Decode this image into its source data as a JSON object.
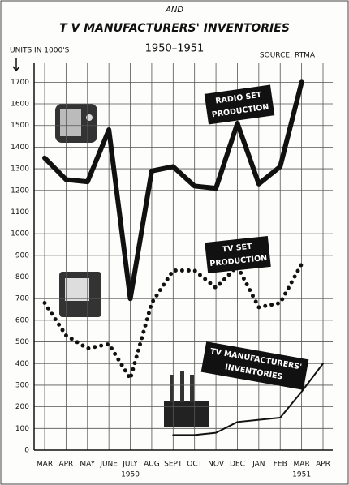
{
  "chart_data": {
    "type": "line",
    "supertitle": "AND",
    "title": "T V MANUFACTURERS' INVENTORIES",
    "subtitle": "1950–1951",
    "y_axis_label": "UNITS IN 1000'S",
    "source": "SOURCE: RTMA",
    "categories": [
      "MAR",
      "APR",
      "MAY",
      "JUNE",
      "JULY",
      "AUG",
      "SEPT",
      "OCT",
      "NOV",
      "DEC",
      "JAN",
      "FEB",
      "MAR",
      "APR"
    ],
    "year_labels": [
      "1950",
      "1951"
    ],
    "series": [
      {
        "name": "RADIO SET PRODUCTION",
        "label_lines": [
          "RADIO SET",
          "PRODUCTION"
        ],
        "color": "#111111",
        "style": "solid",
        "values": [
          1350,
          1250,
          1240,
          1480,
          700,
          1290,
          1310,
          1220,
          1210,
          1510,
          1230,
          1310,
          1700,
          null
        ]
      },
      {
        "name": "TV SET PRODUCTION",
        "label_lines": [
          "TV SET",
          "PRODUCTION"
        ],
        "color": "#111111",
        "style": "dotted",
        "values": [
          680,
          530,
          470,
          490,
          330,
          680,
          830,
          830,
          750,
          850,
          660,
          680,
          860,
          null
        ]
      },
      {
        "name": "TV MANUFACTURERS' INVENTORIES",
        "label_lines": [
          "TV MANUFACTURERS'",
          "INVENTORIES"
        ],
        "color": "#111111",
        "style": "thin",
        "values": [
          null,
          null,
          null,
          null,
          null,
          null,
          70,
          70,
          80,
          130,
          140,
          150,
          270,
          400
        ]
      }
    ],
    "ylim": [
      0,
      1750
    ],
    "yticks": [
      0,
      100,
      200,
      300,
      400,
      500,
      600,
      700,
      800,
      900,
      1000,
      1100,
      1200,
      1300,
      1400,
      1500,
      1600,
      1700
    ],
    "grid": true
  }
}
